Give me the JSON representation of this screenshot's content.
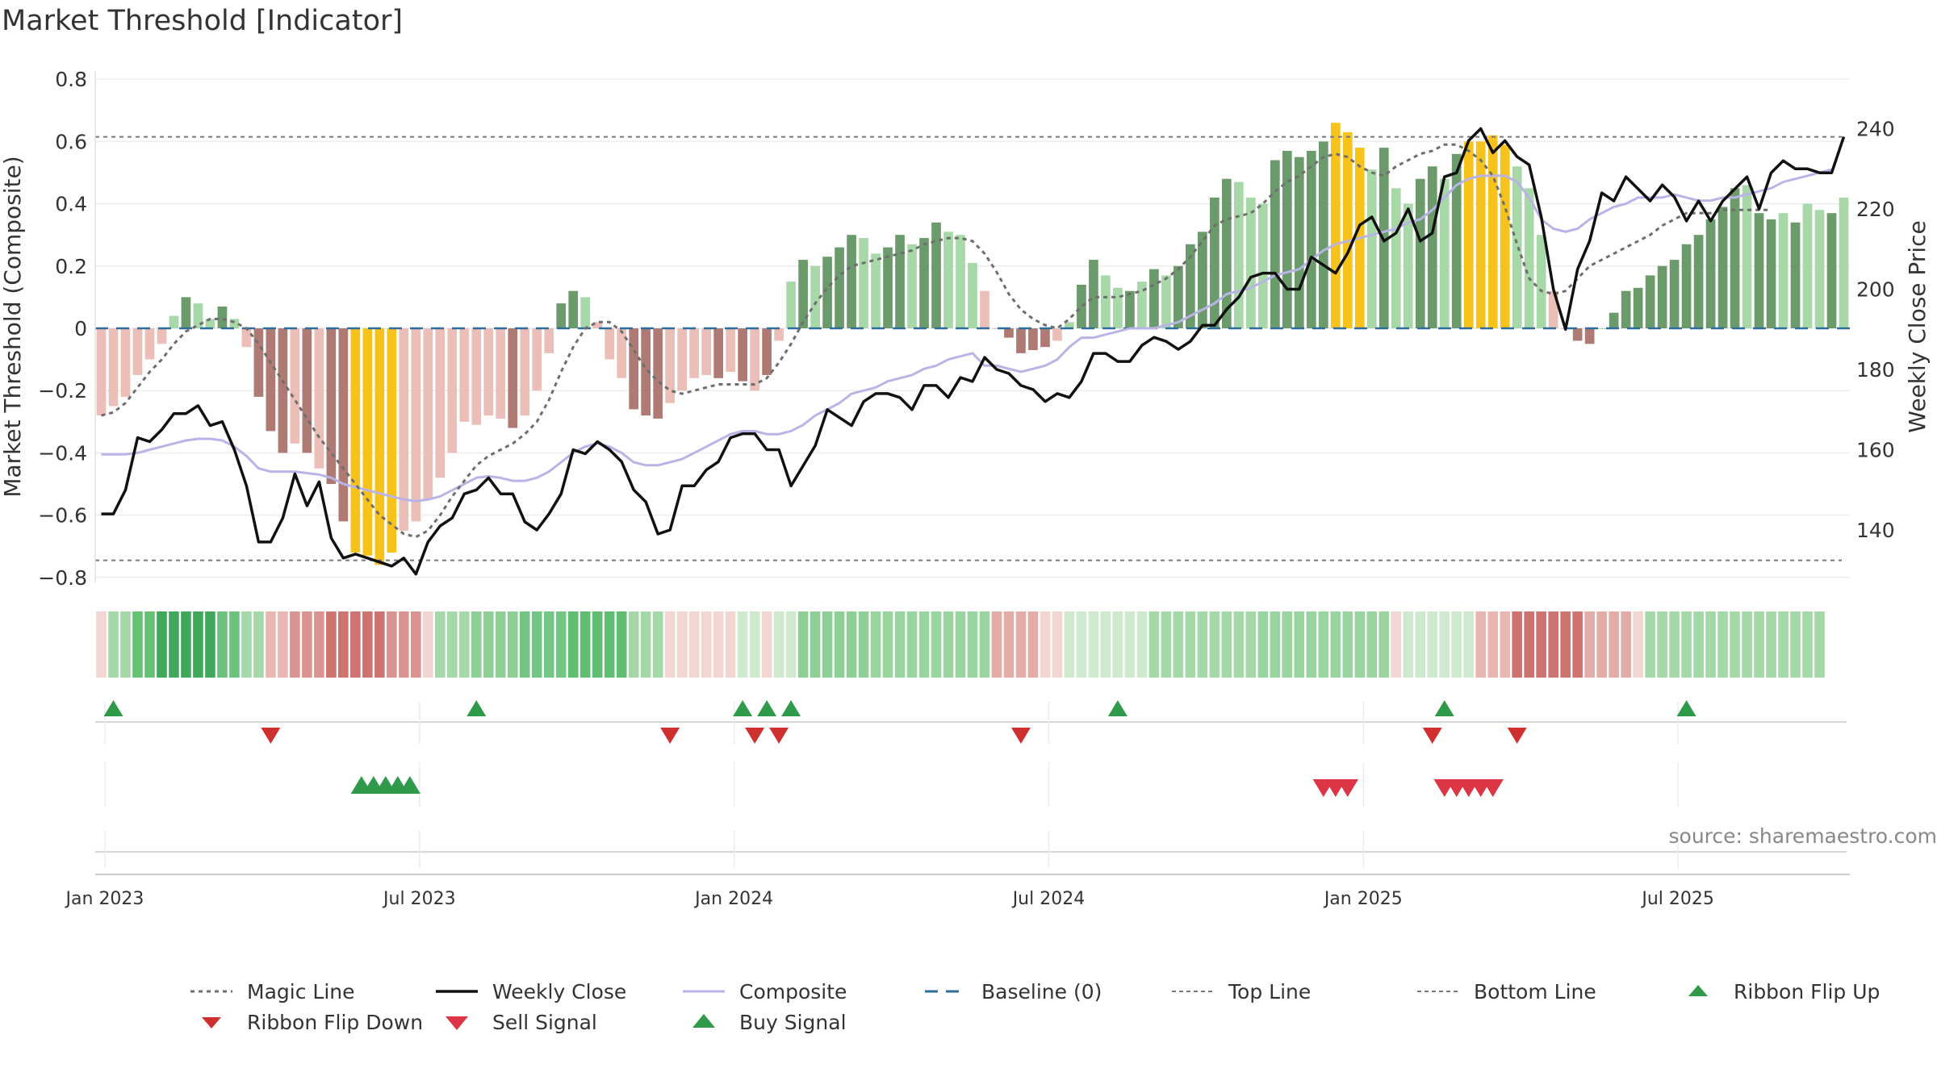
{
  "title": "Market Threshold [Indicator]",
  "source": "source: sharemaestro.com",
  "colors": {
    "bar_strong_pos": "#6b9a6b",
    "bar_light_pos": "#a8d8a8",
    "bar_strong_neg": "#b07a74",
    "bar_light_neg": "#ecbeb8",
    "bar_extreme": "#f7c21a",
    "weekly_close": "#111111",
    "composite": "#b9b4e6",
    "magic_line": "#6e6e6e",
    "baseline": "#2d6e9e",
    "threshold": "#777777",
    "flip_up": "#2e9a4a",
    "flip_down": "#cf2f2f",
    "sell": "#dc3545",
    "buy": "#2e9a4a"
  },
  "chart_data": {
    "type": "bar",
    "title": "Market Threshold [Indicator]",
    "ylabel_left": "Market Threshold (Composite)",
    "ylabel_right": "Weekly Close Price",
    "ylim_left": [
      -0.85,
      0.85
    ],
    "ylim_right": [
      126,
      260
    ],
    "y_ticks_left": [
      {
        "v": 0.8,
        "label": "0.8"
      },
      {
        "v": 0.6,
        "label": "0.6"
      },
      {
        "v": 0.4,
        "label": "0.4"
      },
      {
        "v": 0.2,
        "label": "0.2"
      },
      {
        "v": 0,
        "label": "0"
      },
      {
        "v": -0.2,
        "label": "−0.2"
      },
      {
        "v": -0.4,
        "label": "−0.4"
      },
      {
        "v": -0.6,
        "label": "−0.6"
      },
      {
        "v": -0.8,
        "label": "−0.8"
      }
    ],
    "y_ticks_right": [
      {
        "v": 240,
        "label": "240"
      },
      {
        "v": 220,
        "label": "220"
      },
      {
        "v": 200,
        "label": "200"
      },
      {
        "v": 180,
        "label": "180"
      },
      {
        "v": 160,
        "label": "160"
      },
      {
        "v": 140,
        "label": "140"
      }
    ],
    "x_ticks": [
      {
        "w": 1,
        "label": "Jan 2023"
      },
      {
        "w": 27,
        "label": "Jul 2023"
      },
      {
        "w": 53,
        "label": "Jan 2024"
      },
      {
        "w": 79,
        "label": "Jul 2024"
      },
      {
        "w": 105,
        "label": "Jan 2025"
      },
      {
        "w": 131,
        "label": "Jul 2025"
      }
    ],
    "top_line": 0.615,
    "bottom_line": -0.745,
    "grid": true,
    "composite_bars": [
      -0.28,
      -0.25,
      -0.22,
      -0.15,
      -0.1,
      -0.05,
      0.04,
      0.1,
      0.08,
      0.03,
      0.07,
      0.03,
      -0.06,
      -0.22,
      -0.33,
      -0.4,
      -0.37,
      -0.4,
      -0.45,
      -0.5,
      -0.62,
      -0.72,
      -0.73,
      -0.76,
      -0.72,
      -0.65,
      -0.62,
      -0.55,
      -0.48,
      -0.4,
      -0.3,
      -0.31,
      -0.28,
      -0.29,
      -0.32,
      -0.28,
      -0.2,
      -0.08,
      0.08,
      0.12,
      0.1,
      0.02,
      -0.1,
      -0.16,
      -0.26,
      -0.28,
      -0.29,
      -0.24,
      -0.2,
      -0.16,
      -0.15,
      -0.16,
      -0.14,
      -0.17,
      -0.2,
      -0.15,
      -0.04,
      0.15,
      0.22,
      0.2,
      0.23,
      0.26,
      0.3,
      0.29,
      0.24,
      0.26,
      0.3,
      0.27,
      0.29,
      0.34,
      0.31,
      0.3,
      0.21,
      0.12,
      0.0,
      -0.03,
      -0.08,
      -0.07,
      -0.06,
      -0.04,
      0.02,
      0.14,
      0.22,
      0.17,
      0.13,
      0.12,
      0.15,
      0.19,
      0.17,
      0.2,
      0.27,
      0.31,
      0.42,
      0.48,
      0.47,
      0.42,
      0.4,
      0.54,
      0.57,
      0.55,
      0.57,
      0.6,
      0.66,
      0.63,
      0.58,
      0.51,
      0.58,
      0.45,
      0.4,
      0.48,
      0.52,
      0.48,
      0.56,
      0.6,
      0.6,
      0.62,
      0.59,
      0.52,
      0.45,
      0.3,
      0.12,
      0.0,
      -0.04,
      -0.05,
      0.0,
      0.05,
      0.12,
      0.13,
      0.17,
      0.2,
      0.22,
      0.27,
      0.3,
      0.35,
      0.39,
      0.45,
      0.46,
      0.37,
      0.35,
      0.37,
      0.34,
      0.4,
      0.38,
      0.37,
      0.42
    ],
    "bar_classes": [
      "ln",
      "ln",
      "ln",
      "ln",
      "ln",
      "ln",
      "lp",
      "sp",
      "lp",
      "lp",
      "sp",
      "lp",
      "ln",
      "sn",
      "sn",
      "sn",
      "ln",
      "sn",
      "ln",
      "sn",
      "sn",
      "ye",
      "ye",
      "ye",
      "ye",
      "ln",
      "ln",
      "ln",
      "ln",
      "ln",
      "ln",
      "ln",
      "ln",
      "ln",
      "sn",
      "ln",
      "ln",
      "ln",
      "sp",
      "sp",
      "lp",
      "ln",
      "ln",
      "ln",
      "sn",
      "sn",
      "sn",
      "ln",
      "ln",
      "ln",
      "ln",
      "sn",
      "ln",
      "sn",
      "ln",
      "sn",
      "ln",
      "lp",
      "sp",
      "lp",
      "sp",
      "sp",
      "sp",
      "lp",
      "lp",
      "sp",
      "sp",
      "lp",
      "sp",
      "sp",
      "lp",
      "lp",
      "lp",
      "ln",
      "ln",
      "sn",
      "sn",
      "sn",
      "sn",
      "ln",
      "lp",
      "sp",
      "sp",
      "lp",
      "lp",
      "sp",
      "lp",
      "sp",
      "lp",
      "sp",
      "sp",
      "sp",
      "sp",
      "sp",
      "lp",
      "lp",
      "lp",
      "sp",
      "sp",
      "sp",
      "sp",
      "sp",
      "ye",
      "ye",
      "ye",
      "lp",
      "sp",
      "lp",
      "lp",
      "sp",
      "sp",
      "lp",
      "sp",
      "ye",
      "ye",
      "ye",
      "ye",
      "lp",
      "lp",
      "lp",
      "ln",
      "ln",
      "sn",
      "sn",
      "lp",
      "sp",
      "sp",
      "sp",
      "sp",
      "sp",
      "sp",
      "sp",
      "sp",
      "sp",
      "sp",
      "sp",
      "lp",
      "sp",
      "sp",
      "lp",
      "sp",
      "lp",
      "lp",
      "sp"
    ],
    "weekly_close": [
      144,
      144,
      150,
      163,
      162,
      165,
      169,
      169,
      171,
      166,
      167,
      160,
      151,
      137,
      137,
      143,
      154,
      146,
      152,
      138,
      133,
      134,
      133,
      132,
      131,
      133,
      129,
      137,
      141,
      143,
      149,
      150,
      153,
      149,
      149,
      142,
      140,
      144,
      149,
      160,
      159,
      162,
      160,
      157,
      150,
      147,
      139,
      140,
      151,
      151,
      155,
      157,
      163,
      164,
      164,
      160,
      160,
      151,
      156,
      161,
      170,
      168,
      166,
      172,
      174,
      174,
      173,
      170,
      176,
      176,
      173,
      178,
      177,
      183,
      180,
      179,
      176,
      175,
      172,
      174,
      173,
      177,
      184,
      184,
      182,
      182,
      186,
      188,
      187,
      185,
      187,
      191,
      191,
      195,
      198,
      203,
      204,
      204,
      200,
      200,
      208,
      206,
      204,
      209,
      216,
      218,
      212,
      214,
      220,
      212,
      214,
      228,
      229,
      237,
      240,
      234,
      237,
      233,
      231,
      218,
      200,
      190,
      205,
      212,
      224,
      222,
      228,
      225,
      222,
      226,
      223,
      217,
      222,
      217,
      222,
      225,
      228,
      220,
      229,
      232,
      230,
      230,
      229,
      229,
      238
    ],
    "composite_line": [
      -0.405,
      -0.405,
      -0.405,
      -0.4,
      -0.39,
      -0.38,
      -0.37,
      -0.36,
      -0.355,
      -0.355,
      -0.36,
      -0.38,
      -0.41,
      -0.45,
      -0.46,
      -0.46,
      -0.46,
      -0.465,
      -0.47,
      -0.48,
      -0.5,
      -0.51,
      -0.52,
      -0.53,
      -0.54,
      -0.55,
      -0.555,
      -0.55,
      -0.54,
      -0.52,
      -0.5,
      -0.48,
      -0.475,
      -0.48,
      -0.49,
      -0.49,
      -0.48,
      -0.46,
      -0.43,
      -0.4,
      -0.38,
      -0.37,
      -0.38,
      -0.4,
      -0.43,
      -0.44,
      -0.44,
      -0.43,
      -0.42,
      -0.4,
      -0.38,
      -0.36,
      -0.34,
      -0.33,
      -0.33,
      -0.34,
      -0.34,
      -0.33,
      -0.31,
      -0.28,
      -0.26,
      -0.24,
      -0.21,
      -0.2,
      -0.19,
      -0.17,
      -0.16,
      -0.15,
      -0.13,
      -0.12,
      -0.1,
      -0.09,
      -0.08,
      -0.12,
      -0.12,
      -0.13,
      -0.14,
      -0.13,
      -0.12,
      -0.1,
      -0.06,
      -0.03,
      -0.03,
      -0.02,
      -0.01,
      0.0,
      0.0,
      0.0,
      0.01,
      0.02,
      0.04,
      0.06,
      0.08,
      0.11,
      0.12,
      0.13,
      0.15,
      0.17,
      0.18,
      0.19,
      0.22,
      0.25,
      0.27,
      0.28,
      0.29,
      0.3,
      0.31,
      0.32,
      0.34,
      0.35,
      0.38,
      0.42,
      0.46,
      0.48,
      0.49,
      0.49,
      0.49,
      0.47,
      0.42,
      0.35,
      0.32,
      0.31,
      0.32,
      0.35,
      0.37,
      0.39,
      0.4,
      0.42,
      0.42,
      0.42,
      0.43,
      0.42,
      0.41,
      0.41,
      0.42,
      0.42,
      0.43,
      0.44,
      0.45,
      0.47,
      0.48,
      0.49,
      0.5,
      0.51
    ],
    "magic_line": [
      -0.28,
      -0.27,
      -0.24,
      -0.19,
      -0.14,
      -0.1,
      -0.05,
      -0.01,
      0.01,
      0.03,
      0.03,
      0.02,
      0.0,
      -0.05,
      -0.11,
      -0.17,
      -0.23,
      -0.29,
      -0.35,
      -0.4,
      -0.45,
      -0.5,
      -0.55,
      -0.6,
      -0.63,
      -0.66,
      -0.67,
      -0.65,
      -0.6,
      -0.54,
      -0.49,
      -0.44,
      -0.41,
      -0.39,
      -0.37,
      -0.34,
      -0.3,
      -0.23,
      -0.14,
      -0.06,
      0.0,
      0.02,
      0.02,
      -0.01,
      -0.07,
      -0.13,
      -0.17,
      -0.2,
      -0.21,
      -0.2,
      -0.19,
      -0.18,
      -0.18,
      -0.18,
      -0.18,
      -0.16,
      -0.11,
      -0.05,
      0.02,
      0.08,
      0.13,
      0.17,
      0.2,
      0.21,
      0.22,
      0.23,
      0.24,
      0.25,
      0.27,
      0.28,
      0.29,
      0.29,
      0.28,
      0.24,
      0.18,
      0.11,
      0.06,
      0.03,
      0.01,
      0.0,
      0.03,
      0.07,
      0.1,
      0.1,
      0.1,
      0.11,
      0.12,
      0.14,
      0.16,
      0.19,
      0.23,
      0.28,
      0.33,
      0.35,
      0.36,
      0.37,
      0.4,
      0.44,
      0.47,
      0.49,
      0.52,
      0.55,
      0.56,
      0.55,
      0.52,
      0.5,
      0.49,
      0.52,
      0.54,
      0.56,
      0.57,
      0.59,
      0.59,
      0.57,
      0.54,
      0.49,
      0.39,
      0.27,
      0.16,
      0.12,
      0.11,
      0.12,
      0.16,
      0.2,
      0.22,
      0.24,
      0.26,
      0.28,
      0.3,
      0.33,
      0.35,
      0.37,
      0.37,
      0.37,
      0.38,
      0.38,
      0.38,
      0.38,
      0.38
    ],
    "ribbon": [
      {
        "start": 0,
        "end": 1,
        "color": "#f2d6d3"
      },
      {
        "start": 1,
        "end": 3,
        "color": "#a5d8a7"
      },
      {
        "start": 3,
        "end": 5,
        "color": "#66c174"
      },
      {
        "start": 5,
        "end": 10,
        "color": "#3fa85a"
      },
      {
        "start": 10,
        "end": 12,
        "color": "#6cc27d"
      },
      {
        "start": 12,
        "end": 14,
        "color": "#a5d8a7"
      },
      {
        "start": 14,
        "end": 16,
        "color": "#e9b7b2"
      },
      {
        "start": 16,
        "end": 19,
        "color": "#d99390"
      },
      {
        "start": 19,
        "end": 24,
        "color": "#cd7471"
      },
      {
        "start": 24,
        "end": 27,
        "color": "#d99390"
      },
      {
        "start": 27,
        "end": 28,
        "color": "#f0d4d1"
      },
      {
        "start": 28,
        "end": 31,
        "color": "#a5d8a7"
      },
      {
        "start": 31,
        "end": 35,
        "color": "#8fcf95"
      },
      {
        "start": 35,
        "end": 39,
        "color": "#73c583"
      },
      {
        "start": 39,
        "end": 44,
        "color": "#60bd72"
      },
      {
        "start": 44,
        "end": 47,
        "color": "#a5d8a7"
      },
      {
        "start": 47,
        "end": 53,
        "color": "#f2d6d3"
      },
      {
        "start": 53,
        "end": 55,
        "color": "#cfe9cf"
      },
      {
        "start": 55,
        "end": 56,
        "color": "#f2d6d3"
      },
      {
        "start": 56,
        "end": 58,
        "color": "#cfe9cf"
      },
      {
        "start": 58,
        "end": 64,
        "color": "#8fcf95"
      },
      {
        "start": 64,
        "end": 74,
        "color": "#9ad49f"
      },
      {
        "start": 74,
        "end": 78,
        "color": "#e4aca7"
      },
      {
        "start": 78,
        "end": 80,
        "color": "#f2d6d3"
      },
      {
        "start": 80,
        "end": 87,
        "color": "#cfe9cf"
      },
      {
        "start": 87,
        "end": 96,
        "color": "#a5d8a7"
      },
      {
        "start": 96,
        "end": 107,
        "color": "#9ad49f"
      },
      {
        "start": 107,
        "end": 108,
        "color": "#f2d6d3"
      },
      {
        "start": 108,
        "end": 114,
        "color": "#cfe9cf"
      },
      {
        "start": 114,
        "end": 117,
        "color": "#e9b7b2"
      },
      {
        "start": 117,
        "end": 123,
        "color": "#cd7471"
      },
      {
        "start": 123,
        "end": 127,
        "color": "#e4aca7"
      },
      {
        "start": 127,
        "end": 128,
        "color": "#f2d6d3"
      },
      {
        "start": 128,
        "end": 143,
        "color": "#a5d8a7"
      }
    ],
    "ribbon_flip_up": [
      1,
      31,
      53,
      55,
      57,
      84,
      111,
      131
    ],
    "ribbon_flip_down": [
      14,
      47,
      54,
      56,
      76,
      110,
      117
    ],
    "buy_signals": [
      21.5,
      22.5,
      23.5,
      24.5,
      25.5
    ],
    "sell_signals": [
      101,
      102,
      103,
      111,
      112,
      113,
      114,
      115
    ],
    "legend": [
      {
        "key": "magic",
        "label": "Magic Line"
      },
      {
        "key": "close",
        "label": "Weekly Close"
      },
      {
        "key": "composite",
        "label": "Composite"
      },
      {
        "key": "baseline",
        "label": "Baseline (0)"
      },
      {
        "key": "top",
        "label": "Top Line"
      },
      {
        "key": "bottom",
        "label": "Bottom Line"
      },
      {
        "key": "flipup",
        "label": "Ribbon Flip Up"
      },
      {
        "key": "flipdown",
        "label": "Ribbon Flip Down"
      },
      {
        "key": "sell",
        "label": "Sell Signal"
      },
      {
        "key": "buy",
        "label": "Buy Signal"
      }
    ]
  }
}
